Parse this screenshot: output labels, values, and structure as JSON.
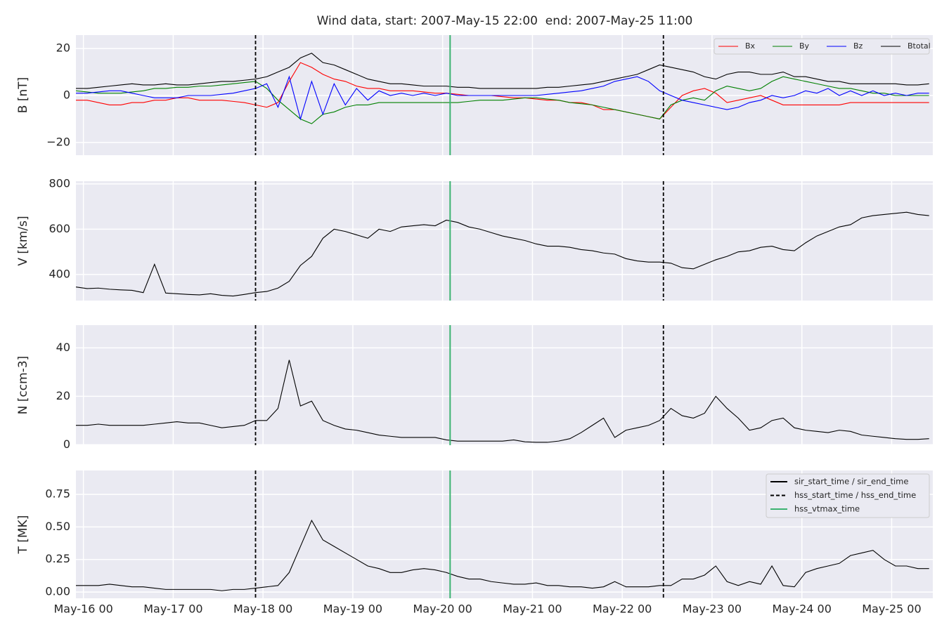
{
  "chart_data": {
    "type": "line",
    "title": "Wind data, start: 2007-May-15 22:00  end: 2007-May-25 11:00",
    "x": [
      -2,
      1,
      4,
      7,
      10,
      13,
      16,
      19,
      22,
      25,
      28,
      31,
      34,
      37,
      40,
      43,
      46,
      49,
      52,
      55,
      58,
      61,
      64,
      67,
      70,
      73,
      76,
      79,
      82,
      85,
      88,
      91,
      94,
      97,
      100,
      103,
      106,
      109,
      112,
      115,
      118,
      121,
      124,
      127,
      130,
      133,
      136,
      139,
      142,
      145,
      148,
      151,
      154,
      157,
      160,
      163,
      166,
      169,
      172,
      175,
      178,
      181,
      184,
      187,
      190,
      193,
      196,
      199,
      202,
      205,
      208,
      211,
      214,
      217,
      220,
      223,
      226
    ],
    "xlim": [
      -2,
      227
    ],
    "xticks": [
      {
        "value": 0,
        "label": "May-16 00"
      },
      {
        "value": 24,
        "label": "May-17 00"
      },
      {
        "value": 48,
        "label": "May-18 00"
      },
      {
        "value": 72,
        "label": "May-19 00"
      },
      {
        "value": 96,
        "label": "May-20 00"
      },
      {
        "value": 120,
        "label": "May-21 00"
      },
      {
        "value": 144,
        "label": "May-22 00"
      },
      {
        "value": 168,
        "label": "May-23 00"
      },
      {
        "value": 192,
        "label": "May-24 00"
      },
      {
        "value": 216,
        "label": "May-25 00"
      }
    ],
    "grid": true,
    "events": [
      {
        "name": "sir_start_time / sir_end_time",
        "color": "#000000",
        "style": "solid",
        "x": []
      },
      {
        "name": "hss_start_time / hss_end_time",
        "color": "#000000",
        "style": "dashed",
        "x": [
          46,
          155
        ]
      },
      {
        "name": "hss_vtmax_time",
        "color": "#3cb371",
        "style": "solid",
        "x": [
          98
        ]
      }
    ],
    "panels": [
      {
        "type": "line",
        "ylabel": "B [nT]",
        "ylim": [
          -25.4,
          25.7
        ],
        "yticks": [
          {
            "value": -20,
            "label": "−20"
          },
          0,
          20
        ],
        "legend": "upper right",
        "series": [
          {
            "name": "Bx",
            "color": "#ff0000",
            "values": [
              -2,
              -2,
              -3,
              -4,
              -4,
              -3,
              -3,
              -2,
              -2,
              -1,
              -1,
              -2,
              -2,
              -2,
              -2.5,
              -3,
              -4,
              -5,
              -3,
              6,
              14,
              12,
              9,
              7,
              6,
              4,
              3,
              3,
              2,
              2,
              2,
              1.5,
              1,
              1,
              0.5,
              0,
              0,
              0,
              -0.5,
              -1,
              -1,
              -1.5,
              -2,
              -2,
              -3,
              -3,
              -4,
              -6,
              -6,
              -7,
              -8,
              -9,
              -10,
              -5,
              0,
              2,
              3,
              1,
              -3,
              -2,
              -1,
              0,
              -2,
              -4,
              -4,
              -4,
              -4,
              -4,
              -4,
              -3,
              -3,
              -3,
              -3,
              -3,
              -3,
              -3,
              -3
            ]
          },
          {
            "name": "By",
            "color": "#008000",
            "values": [
              2,
              1.5,
              1,
              1,
              1,
              1.5,
              2,
              3,
              3,
              3.5,
              3.5,
              4,
              4,
              4.5,
              5,
              5.5,
              6,
              3,
              -2,
              -6,
              -10,
              -12,
              -8,
              -7,
              -5,
              -4,
              -4,
              -3,
              -3,
              -3,
              -3,
              -3,
              -3,
              -3,
              -3,
              -2.5,
              -2,
              -2,
              -2,
              -1.5,
              -1,
              -1,
              -1.5,
              -2,
              -3,
              -3.5,
              -4,
              -5,
              -6,
              -7,
              -8,
              -9,
              -10,
              -4,
              -2,
              -1,
              -2,
              2,
              4,
              3,
              2,
              3,
              6,
              8,
              7,
              6,
              5,
              4,
              3,
              3,
              2,
              1,
              1,
              0,
              0,
              0,
              0
            ]
          },
          {
            "name": "Bz",
            "color": "#0000ff",
            "values": [
              1,
              1,
              1.5,
              2,
              2,
              1,
              0,
              -1,
              -1,
              -1,
              0,
              0,
              0,
              0.5,
              1,
              2,
              3,
              5,
              -5,
              8,
              -10,
              6,
              -8,
              5,
              -4,
              3,
              -2,
              2,
              0,
              1,
              0,
              1,
              0,
              1,
              0,
              0,
              0,
              0,
              0,
              0,
              0,
              0,
              0.5,
              1,
              1.5,
              2,
              3,
              4,
              6,
              7,
              8,
              6,
              2,
              0,
              -2,
              -3,
              -4,
              -5,
              -6,
              -5,
              -3,
              -2,
              0,
              -1,
              0,
              2,
              1,
              3,
              0,
              2,
              0,
              2,
              0,
              1,
              0,
              1,
              1
            ]
          },
          {
            "name": "Btotal",
            "color": "#000000",
            "values": [
              3,
              3,
              3.5,
              4,
              4.5,
              5,
              4.5,
              4.5,
              5,
              4.5,
              4.5,
              5,
              5.5,
              6,
              6,
              6.5,
              7,
              8,
              10,
              12,
              16,
              18,
              14,
              13,
              11,
              9,
              7,
              6,
              5,
              5,
              4.5,
              4,
              4,
              4,
              3.5,
              3.5,
              3,
              3,
              3,
              3,
              3,
              3,
              3.5,
              3.5,
              4,
              4.5,
              5,
              6,
              7,
              8,
              9,
              11,
              13,
              12,
              11,
              10,
              8,
              7,
              9,
              10,
              10,
              9,
              9,
              10,
              8,
              8,
              7,
              6,
              6,
              5,
              5,
              5,
              5,
              5,
              4.5,
              4.5,
              5
            ]
          }
        ]
      },
      {
        "type": "line",
        "ylabel": "V [km/s]",
        "ylim": [
          285,
          812
        ],
        "yticks": [
          400,
          600,
          800
        ],
        "series": [
          {
            "color": "#000000",
            "values": [
              345,
              338,
              340,
              335,
              332,
              330,
              320,
              445,
              318,
              315,
              312,
              310,
              315,
              308,
              305,
              312,
              320,
              325,
              340,
              370,
              440,
              480,
              560,
              600,
              590,
              575,
              560,
              600,
              590,
              610,
              615,
              620,
              615,
              640,
              630,
              610,
              600,
              585,
              570,
              560,
              550,
              535,
              525,
              525,
              520,
              510,
              505,
              495,
              490,
              470,
              460,
              455,
              455,
              450,
              430,
              425,
              445,
              465,
              480,
              500,
              505,
              520,
              525,
              510,
              505,
              540,
              570,
              590,
              610,
              620,
              650,
              660,
              665,
              670,
              675,
              665,
              660
            ]
          }
        ]
      },
      {
        "type": "line",
        "ylabel": "N [ccm-3]",
        "ylim": [
          -0.2,
          49.4
        ],
        "yticks": [
          0,
          20,
          40
        ],
        "series": [
          {
            "color": "#000000",
            "values": [
              8,
              8,
              8.5,
              8,
              8,
              8,
              8,
              8.5,
              9,
              9.5,
              9,
              9,
              8,
              7,
              7.5,
              8,
              10,
              10,
              15,
              35,
              16,
              18,
              10,
              8,
              6.5,
              6,
              5,
              4,
              3.5,
              3,
              3,
              3,
              3,
              2,
              1.5,
              1.5,
              1.5,
              1.5,
              1.5,
              2,
              1.2,
              1,
              1,
              1.5,
              2.5,
              5,
              8,
              11,
              3,
              6,
              7,
              8,
              10,
              15,
              12,
              11,
              13,
              20,
              15,
              11,
              6,
              7,
              10,
              11,
              7,
              6,
              5.5,
              5,
              6,
              5.5,
              4,
              3.5,
              3,
              2.5,
              2.2,
              2.2,
              2.5
            ]
          }
        ]
      },
      {
        "type": "line",
        "ylabel": "T [MK]",
        "ylim": [
          -0.048,
          0.933
        ],
        "yticks": [
          {
            "value": 0,
            "label": "0.00"
          },
          {
            "value": 0.25,
            "label": "0.25"
          },
          {
            "value": 0.5,
            "label": "0.50"
          },
          {
            "value": 0.75,
            "label": "0.75"
          }
        ],
        "legend": "upper right",
        "series": [
          {
            "color": "#000000",
            "values": [
              0.05,
              0.05,
              0.05,
              0.06,
              0.05,
              0.04,
              0.04,
              0.03,
              0.02,
              0.02,
              0.02,
              0.02,
              0.02,
              0.01,
              0.02,
              0.02,
              0.03,
              0.04,
              0.05,
              0.15,
              0.35,
              0.55,
              0.4,
              0.35,
              0.3,
              0.25,
              0.2,
              0.18,
              0.15,
              0.15,
              0.17,
              0.18,
              0.17,
              0.15,
              0.12,
              0.1,
              0.1,
              0.08,
              0.07,
              0.06,
              0.06,
              0.07,
              0.05,
              0.05,
              0.04,
              0.04,
              0.03,
              0.04,
              0.08,
              0.04,
              0.04,
              0.04,
              0.05,
              0.05,
              0.1,
              0.1,
              0.13,
              0.2,
              0.08,
              0.05,
              0.08,
              0.06,
              0.2,
              0.05,
              0.04,
              0.15,
              0.18,
              0.2,
              0.22,
              0.28,
              0.3,
              0.32,
              0.25,
              0.2,
              0.2,
              0.18,
              0.18
            ]
          }
        ]
      }
    ]
  }
}
